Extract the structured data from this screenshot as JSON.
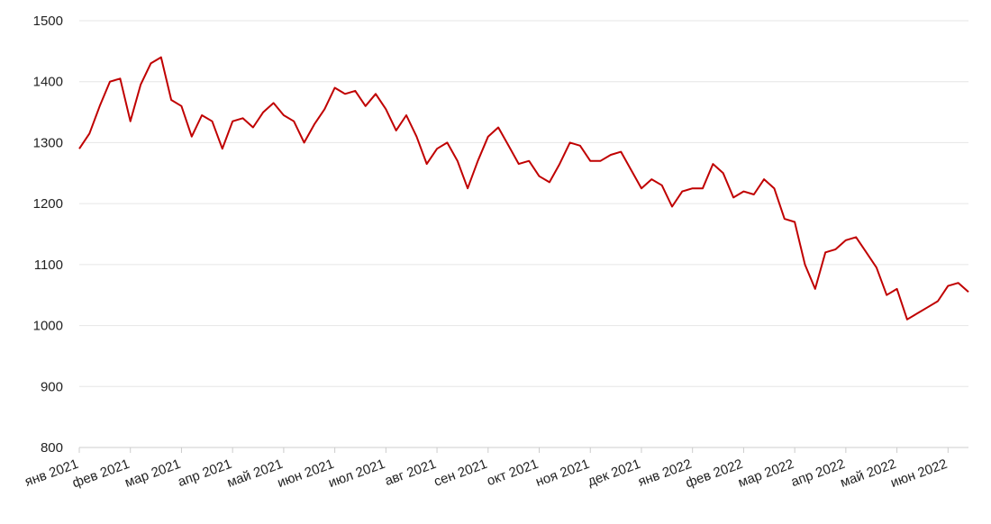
{
  "chart_data": {
    "type": "line",
    "categories": [
      "янв 2021",
      null,
      null,
      null,
      null,
      "фев 2021",
      null,
      null,
      null,
      null,
      "мар 2021",
      null,
      null,
      null,
      null,
      "апр 2021",
      null,
      null,
      null,
      null,
      "май 2021",
      null,
      null,
      null,
      null,
      "июн 2021",
      null,
      null,
      null,
      null,
      "июл 2021",
      null,
      null,
      null,
      null,
      "авг 2021",
      null,
      null,
      null,
      null,
      "сен 2021",
      null,
      null,
      null,
      null,
      "окт 2021",
      null,
      null,
      null,
      null,
      "ноя 2021",
      null,
      null,
      null,
      null,
      "дек 2021",
      null,
      null,
      null,
      null,
      "янв 2022",
      null,
      null,
      null,
      null,
      "фев 2022",
      null,
      null,
      null,
      null,
      "мар 2022",
      null,
      null,
      null,
      null,
      "апр 2022",
      null,
      null,
      null,
      null,
      "май 2022",
      null,
      null,
      null,
      null,
      "июн 2022",
      null,
      null
    ],
    "series": [
      {
        "color": "#c00000",
        "values": [
          1290,
          1315,
          1360,
          1400,
          1405,
          1335,
          1395,
          1430,
          1440,
          1370,
          1360,
          1310,
          1345,
          1335,
          1290,
          1335,
          1340,
          1325,
          1350,
          1365,
          1345,
          1335,
          1300,
          1330,
          1355,
          1390,
          1380,
          1385,
          1360,
          1380,
          1355,
          1320,
          1345,
          1310,
          1265,
          1290,
          1300,
          1270,
          1225,
          1270,
          1310,
          1325,
          1295,
          1265,
          1270,
          1245,
          1235,
          1265,
          1300,
          1295,
          1270,
          1270,
          1280,
          1285,
          1255,
          1225,
          1240,
          1230,
          1195,
          1220,
          1225,
          1225,
          1265,
          1250,
          1210,
          1220,
          1215,
          1240,
          1225,
          1175,
          1170,
          1100,
          1060,
          1120,
          1125,
          1140,
          1145,
          1120,
          1095,
          1050,
          1060,
          1010,
          1020,
          1030,
          1040,
          1065,
          1070,
          1055
        ]
      }
    ],
    "ylim": [
      800,
      1500
    ],
    "yticks": [
      800,
      900,
      1000,
      1100,
      1200,
      1300,
      1400,
      1500
    ],
    "grid": true
  }
}
